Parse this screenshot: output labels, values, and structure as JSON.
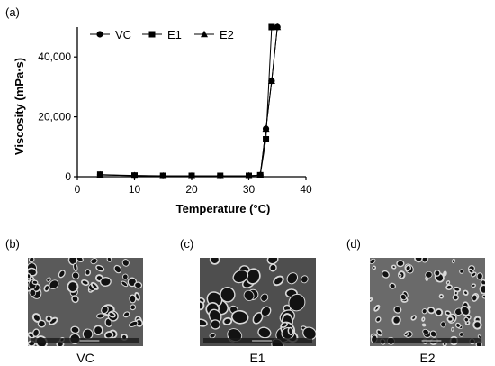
{
  "panels": [
    {
      "label": "(a)"
    },
    {
      "label": "(b)",
      "caption": "VC"
    },
    {
      "label": "(c)",
      "caption": "E1"
    },
    {
      "label": "(d)",
      "caption": "E2"
    }
  ],
  "chart_data": {
    "type": "line",
    "xlabel": "Temperature (°C)",
    "ylabel": "Viscosity (mPa·s)",
    "xlim": [
      0,
      40
    ],
    "ylim": [
      0,
      50000
    ],
    "xticks": [
      "0",
      "10",
      "20",
      "30",
      "40"
    ],
    "yticks": [
      "0",
      "20,000",
      "40,000"
    ],
    "grid": false,
    "legend_position": "top-left",
    "series": [
      {
        "name": "VC",
        "marker": "circle",
        "x": [
          4,
          10,
          15,
          20,
          25,
          30,
          32,
          33,
          34,
          35
        ],
        "y": [
          600,
          350,
          250,
          250,
          250,
          300,
          500,
          16000,
          32000,
          50000
        ]
      },
      {
        "name": "E1",
        "marker": "square",
        "x": [
          4,
          10,
          15,
          20,
          25,
          30,
          32,
          33,
          34
        ],
        "y": [
          700,
          400,
          300,
          300,
          300,
          300,
          500,
          12500,
          50000
        ]
      },
      {
        "name": "E2",
        "marker": "triangle",
        "x": [
          4,
          10,
          15,
          20,
          25,
          30,
          32,
          33,
          34,
          35
        ],
        "y": [
          600,
          350,
          250,
          250,
          250,
          300,
          500,
          16000,
          32000,
          50000
        ]
      }
    ]
  }
}
